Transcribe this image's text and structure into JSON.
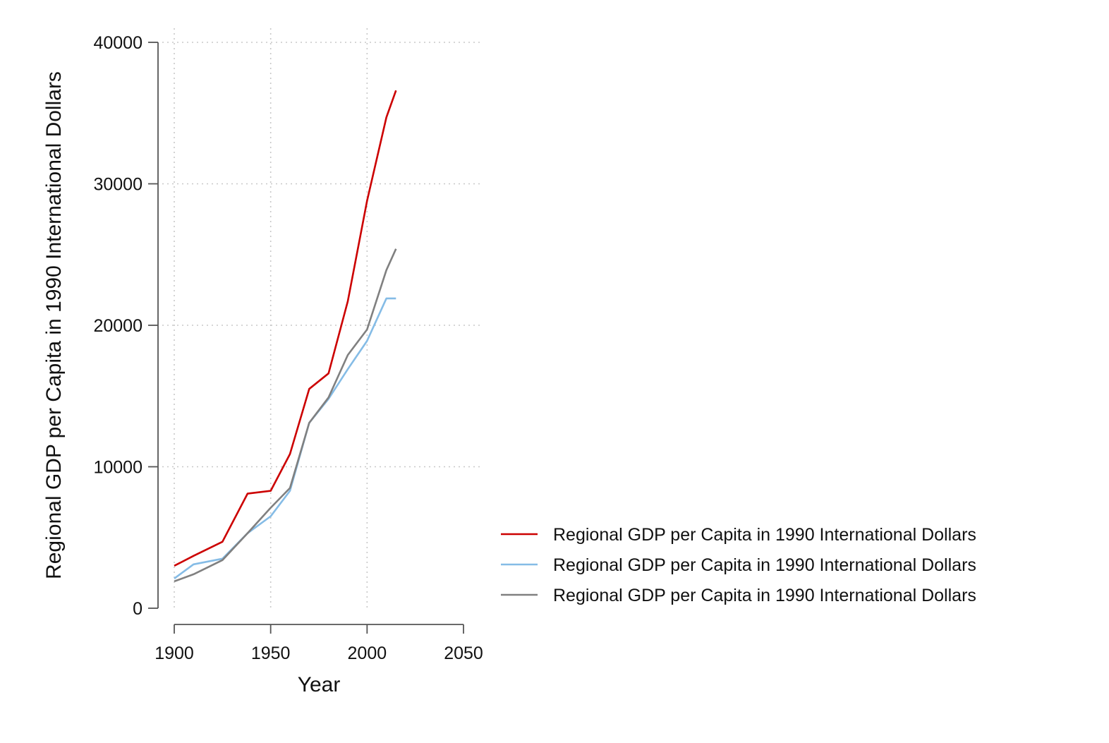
{
  "chart_data": {
    "type": "line",
    "title": "",
    "xlabel": "Year",
    "ylabel": "Regional GDP per Capita in 1990 International Dollars",
    "xlim": [
      1900,
      2050
    ],
    "ylim": [
      0,
      40000
    ],
    "x_ticks": [
      1900,
      1950,
      2000,
      2050
    ],
    "y_ticks": [
      0,
      10000,
      20000,
      30000,
      40000
    ],
    "grid": true,
    "legend_placement": "right",
    "series": [
      {
        "name": "Regional GDP per Capita in 1990 International Dollars",
        "color": "#cc0000",
        "x": [
          1900,
          1910,
          1925,
          1938,
          1950,
          1960,
          1970,
          1980,
          1990,
          2000,
          2010,
          2015
        ],
        "y": [
          3000,
          3700,
          4700,
          8100,
          8300,
          10900,
          15500,
          16600,
          21700,
          28800,
          34700,
          36600
        ]
      },
      {
        "name": "Regional GDP per Capita in 1990 International Dollars",
        "color": "#85bce6",
        "x": [
          1900,
          1910,
          1925,
          1938,
          1950,
          1960,
          1970,
          1980,
          1990,
          2000,
          2010,
          2015
        ],
        "y": [
          2100,
          3100,
          3500,
          5300,
          6500,
          8300,
          13100,
          14800,
          16900,
          18900,
          21900,
          21900
        ]
      },
      {
        "name": "Regional GDP per Capita in 1990 International Dollars",
        "color": "#808080",
        "x": [
          1900,
          1910,
          1925,
          1938,
          1950,
          1960,
          1970,
          1980,
          1990,
          2000,
          2010,
          2015
        ],
        "y": [
          1900,
          2400,
          3400,
          5300,
          7100,
          8500,
          13100,
          14900,
          17900,
          19700,
          23900,
          25400
        ]
      }
    ]
  }
}
